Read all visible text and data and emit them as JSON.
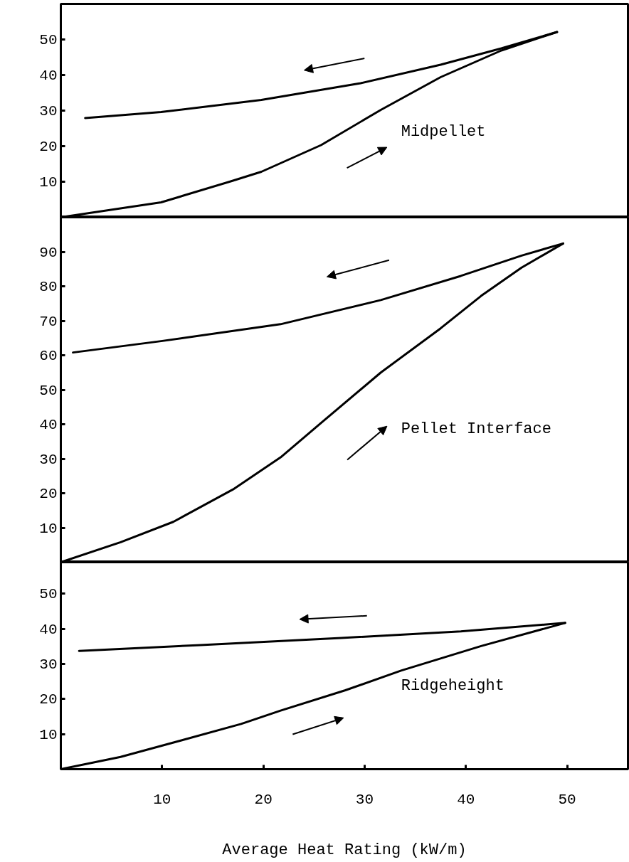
{
  "chart_data": [
    {
      "type": "line",
      "annotations": [
        "Midpellet"
      ],
      "xlim": [
        0,
        56
      ],
      "ylim": [
        0,
        60
      ],
      "yticks": [
        10,
        20,
        30,
        40,
        50
      ],
      "tick_labels": "y",
      "grid": false,
      "marker": "none",
      "line_style": "solid",
      "series": [
        {
          "color": "#000000",
          "x": [
            49,
            43.5,
            37.5,
            29.6,
            19.8,
            9.9,
            2.4
          ],
          "values": [
            52.1,
            47.5,
            42.9,
            37.7,
            33,
            29.6,
            27.9
          ]
        },
        {
          "color": "#000000",
          "x": [
            0,
            9.9,
            17,
            19.8,
            25.7,
            31.6,
            37.5,
            43.5,
            49
          ],
          "values": [
            0,
            4.2,
            10.3,
            12.8,
            20.3,
            30.2,
            39.4,
            46.9,
            52.1
          ]
        }
      ]
    },
    {
      "type": "line",
      "annotations": [
        "Pellet Interface"
      ],
      "xlim": [
        0,
        56
      ],
      "ylim": [
        0,
        100
      ],
      "yticks": [
        10,
        20,
        30,
        40,
        50,
        60,
        70,
        80,
        90
      ],
      "tick_labels": "y",
      "grid": false,
      "marker": "none",
      "line_style": "solid",
      "series": [
        {
          "color": "#000000",
          "x": [
            49.6,
            45.5,
            39.5,
            31.6,
            21.7,
            9.9,
            1.2
          ],
          "values": [
            92.4,
            88.9,
            83,
            76,
            69,
            64.1,
            60.8
          ]
        },
        {
          "color": "#000000",
          "x": [
            0,
            5.9,
            11.1,
            17,
            21.7,
            25.7,
            31.6,
            37.5,
            41.5,
            45.5,
            49.6
          ],
          "values": [
            0,
            5.8,
            11.7,
            21.1,
            30.4,
            40.4,
            55,
            67.8,
            77.2,
            85.4,
            92.4
          ]
        }
      ]
    },
    {
      "type": "line",
      "annotations": [
        "Ridgeheight"
      ],
      "xlabel": "Average Heat Rating (kW/m)",
      "xlim": [
        0,
        56
      ],
      "ylim": [
        0,
        59
      ],
      "xticks": [
        10,
        20,
        30,
        40,
        50
      ],
      "yticks": [
        10,
        20,
        30,
        40,
        50
      ],
      "grid": false,
      "marker": "none",
      "line_style": "solid",
      "series": [
        {
          "color": "#000000",
          "x": [
            49.8,
            39.5,
            27.7,
            13.8,
            1.8
          ],
          "values": [
            41.7,
            39.3,
            37.4,
            35.4,
            33.7
          ]
        },
        {
          "color": "#000000",
          "x": [
            0,
            5.9,
            11.9,
            17.8,
            21.7,
            28.1,
            33.6,
            41.5,
            49.8
          ],
          "values": [
            0,
            3.5,
            8.2,
            12.9,
            16.7,
            22.5,
            28.1,
            35.1,
            41.7
          ]
        }
      ]
    }
  ]
}
